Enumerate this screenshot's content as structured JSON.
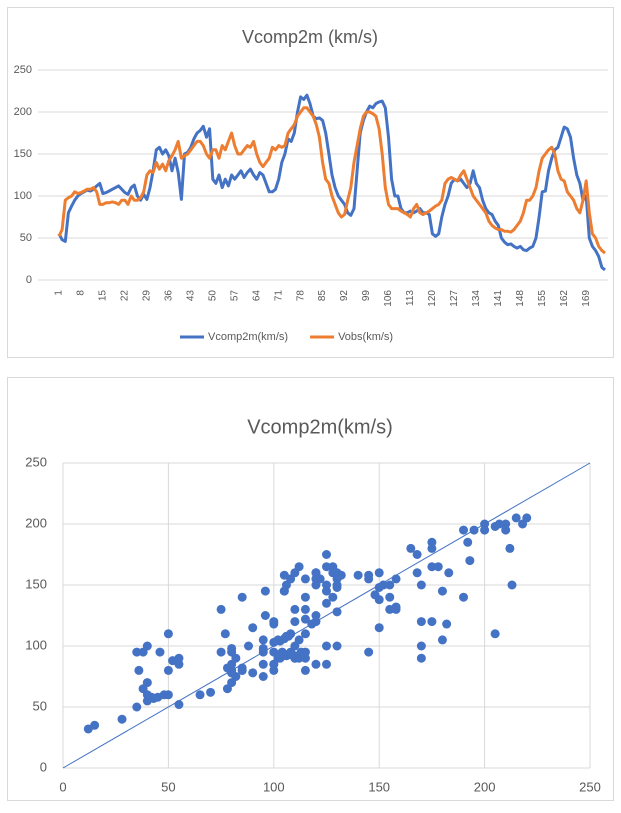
{
  "chart_data": [
    {
      "type": "line",
      "title": "Vcomp2m (km/s)",
      "categories": [
        "1",
        null,
        null,
        null,
        null,
        null,
        null,
        "8",
        null,
        null,
        null,
        null,
        null,
        null,
        "15",
        null,
        null,
        null,
        null,
        null,
        null,
        "22",
        null,
        null,
        null,
        null,
        null,
        null,
        "29",
        null,
        null,
        null,
        null,
        null,
        null,
        "36",
        null,
        null,
        null,
        null,
        null,
        null,
        "43",
        null,
        null,
        null,
        null,
        null,
        null,
        "50",
        null,
        null,
        null,
        null,
        null,
        null,
        "57",
        null,
        null,
        null,
        null,
        null,
        null,
        "64",
        null,
        null,
        null,
        null,
        null,
        null,
        "71",
        null,
        null,
        null,
        null,
        null,
        null,
        "78",
        null,
        null,
        null,
        null,
        null,
        null,
        "85",
        null,
        null,
        null,
        null,
        null,
        null,
        "92",
        null,
        null,
        null,
        null,
        null,
        null,
        "99",
        null,
        null,
        null,
        null,
        null,
        null,
        "106",
        null,
        null,
        null,
        null,
        null,
        null,
        "113",
        null,
        null,
        null,
        null,
        null,
        null,
        "120",
        null,
        null,
        null,
        null,
        null,
        null,
        "127",
        null,
        null,
        null,
        null,
        null,
        null,
        "134",
        null,
        null,
        null,
        null,
        null,
        null,
        "141",
        null,
        null,
        null,
        null,
        null,
        null,
        "148",
        null,
        null,
        null,
        null,
        null,
        null,
        "155",
        null,
        null,
        null,
        null,
        null,
        null,
        "162",
        null,
        null,
        null,
        null,
        null,
        null,
        "169",
        null,
        null,
        null,
        null,
        null,
        null
      ],
      "series": [
        {
          "name": "Vcomp2m(km/s)",
          "color": "#4472c4",
          "values": [
            55,
            48,
            46,
            80,
            88,
            95,
            100,
            103,
            105,
            107,
            106,
            108,
            112,
            115,
            103,
            104,
            106,
            108,
            110,
            112,
            108,
            104,
            102,
            110,
            113,
            100,
            95,
            102,
            96,
            110,
            130,
            155,
            158,
            150,
            155,
            148,
            130,
            145,
            128,
            96,
            150,
            152,
            158,
            168,
            175,
            178,
            183,
            170,
            180,
            120,
            115,
            125,
            110,
            120,
            112,
            125,
            120,
            125,
            130,
            122,
            128,
            132,
            125,
            120,
            128,
            125,
            115,
            105,
            105,
            108,
            120,
            140,
            150,
            168,
            165,
            175,
            200,
            218,
            215,
            220,
            210,
            195,
            192,
            193,
            190,
            175,
            150,
            125,
            110,
            100,
            95,
            90,
            80,
            77,
            85,
            130,
            175,
            190,
            200,
            207,
            205,
            210,
            212,
            213,
            205,
            170,
            120,
            100,
            100,
            85,
            80,
            80,
            82,
            80,
            82,
            85,
            80,
            80,
            78,
            55,
            52,
            55,
            75,
            90,
            100,
            115,
            120,
            118,
            120,
            115,
            110,
            115,
            130,
            115,
            110,
            95,
            85,
            80,
            78,
            70,
            65,
            50,
            45,
            42,
            43,
            40,
            38,
            40,
            36,
            35,
            38,
            40,
            50,
            75,
            105,
            106,
            130,
            145,
            155,
            158,
            170,
            182,
            180,
            170,
            145,
            125,
            115,
            95,
            100,
            50,
            40,
            35,
            28,
            15,
            12
          ]
        },
        {
          "name": "Vobs(km/s)",
          "color": "#ed7d31",
          "values": [
            52,
            60,
            95,
            98,
            100,
            105,
            103,
            104,
            106,
            108,
            108,
            110,
            105,
            90,
            90,
            92,
            92,
            93,
            92,
            90,
            95,
            95,
            90,
            100,
            95,
            95,
            98,
            105,
            125,
            130,
            128,
            140,
            132,
            138,
            130,
            142,
            148,
            155,
            165,
            145,
            148,
            150,
            155,
            160,
            165,
            165,
            160,
            150,
            145,
            155,
            155,
            145,
            160,
            155,
            165,
            175,
            160,
            150,
            150,
            155,
            160,
            158,
            165,
            150,
            140,
            135,
            140,
            145,
            158,
            155,
            160,
            158,
            160,
            175,
            180,
            185,
            195,
            200,
            205,
            205,
            200,
            195,
            185,
            170,
            140,
            120,
            115,
            100,
            90,
            80,
            75,
            78,
            95,
            110,
            140,
            160,
            180,
            195,
            200,
            200,
            198,
            195,
            180,
            150,
            110,
            90,
            85,
            85,
            85,
            82,
            80,
            78,
            75,
            85,
            90,
            80,
            78,
            80,
            82,
            85,
            88,
            90,
            95,
            115,
            120,
            122,
            120,
            118,
            125,
            130,
            120,
            110,
            100,
            95,
            90,
            85,
            80,
            70,
            65,
            62,
            60,
            60,
            58,
            58,
            57,
            60,
            65,
            70,
            80,
            95,
            95,
            100,
            110,
            130,
            145,
            150,
            155,
            158,
            150,
            130,
            120,
            118,
            105,
            100,
            95,
            85,
            80,
            95,
            118,
            80,
            55,
            50,
            40,
            35,
            32
          ]
        }
      ],
      "ylim": [
        0,
        250
      ],
      "yticks": [
        0,
        50,
        100,
        150,
        200,
        250
      ],
      "grid": true,
      "legend": "bottom"
    },
    {
      "type": "scatter",
      "title": "Vcomp2m(km/s)",
      "color": "#4472c4",
      "x": [
        55,
        48,
        46,
        80,
        88,
        95,
        100,
        103,
        105,
        107,
        106,
        108,
        112,
        115,
        103,
        104,
        106,
        108,
        110,
        112,
        108,
        104,
        102,
        110,
        113,
        100,
        95,
        102,
        96,
        110,
        130,
        155,
        158,
        150,
        155,
        148,
        130,
        145,
        128,
        96,
        150,
        152,
        158,
        168,
        175,
        178,
        183,
        170,
        180,
        120,
        115,
        125,
        110,
        120,
        112,
        125,
        120,
        125,
        130,
        122,
        128,
        132,
        125,
        120,
        128,
        125,
        115,
        105,
        105,
        108,
        120,
        140,
        150,
        168,
        165,
        175,
        200,
        218,
        215,
        220,
        210,
        195,
        192,
        193,
        190,
        175,
        150,
        125,
        110,
        100,
        95,
        90,
        80,
        77,
        85,
        130,
        175,
        190,
        200,
        207,
        205,
        210,
        212,
        213,
        205,
        170,
        120,
        100,
        100,
        85,
        80,
        80,
        82,
        80,
        82,
        85,
        80,
        80,
        78,
        55,
        52,
        55,
        75,
        90,
        100,
        115,
        120,
        118,
        120,
        115,
        110,
        115,
        130,
        115,
        110,
        95,
        85,
        80,
        78,
        70,
        65,
        50,
        45,
        42,
        43,
        40,
        38,
        40,
        36,
        35,
        38,
        40,
        50,
        75,
        105,
        106,
        130,
        145,
        155,
        158,
        170,
        182,
        180,
        170,
        145,
        125,
        115,
        95,
        100,
        50,
        40,
        35,
        28,
        15,
        12
      ],
      "values": [
        52,
        60,
        95,
        98,
        100,
        105,
        103,
        104,
        106,
        108,
        108,
        110,
        105,
        90,
        90,
        92,
        92,
        93,
        92,
        90,
        95,
        95,
        90,
        100,
        95,
        95,
        98,
        105,
        125,
        130,
        128,
        140,
        132,
        138,
        130,
        142,
        148,
        155,
        165,
        145,
        148,
        150,
        155,
        160,
        165,
        165,
        160,
        150,
        145,
        155,
        155,
        145,
        160,
        155,
        165,
        175,
        160,
        150,
        150,
        155,
        160,
        158,
        165,
        150,
        140,
        135,
        140,
        145,
        158,
        155,
        160,
        158,
        160,
        175,
        180,
        185,
        195,
        200,
        205,
        205,
        200,
        195,
        185,
        170,
        140,
        120,
        115,
        100,
        90,
        80,
        75,
        78,
        95,
        110,
        140,
        160,
        180,
        195,
        200,
        200,
        198,
        195,
        180,
        150,
        110,
        90,
        85,
        85,
        85,
        82,
        80,
        78,
        75,
        85,
        90,
        80,
        78,
        80,
        82,
        85,
        88,
        90,
        95,
        115,
        120,
        122,
        120,
        118,
        125,
        130,
        120,
        110,
        100,
        95,
        90,
        85,
        80,
        70,
        65,
        62,
        60,
        60,
        58,
        58,
        57,
        60,
        65,
        70,
        80,
        95,
        95,
        100,
        110,
        130,
        145,
        150,
        155,
        158,
        150,
        130,
        120,
        118,
        105,
        100,
        95,
        85,
        80,
        95,
        118,
        80,
        55,
        50,
        40,
        35,
        32
      ],
      "xlim": [
        0,
        250
      ],
      "xticks": [
        0,
        50,
        100,
        150,
        200,
        250
      ],
      "ylim": [
        0,
        250
      ],
      "yticks": [
        0,
        50,
        100,
        150,
        200,
        250
      ],
      "grid": true
    }
  ]
}
